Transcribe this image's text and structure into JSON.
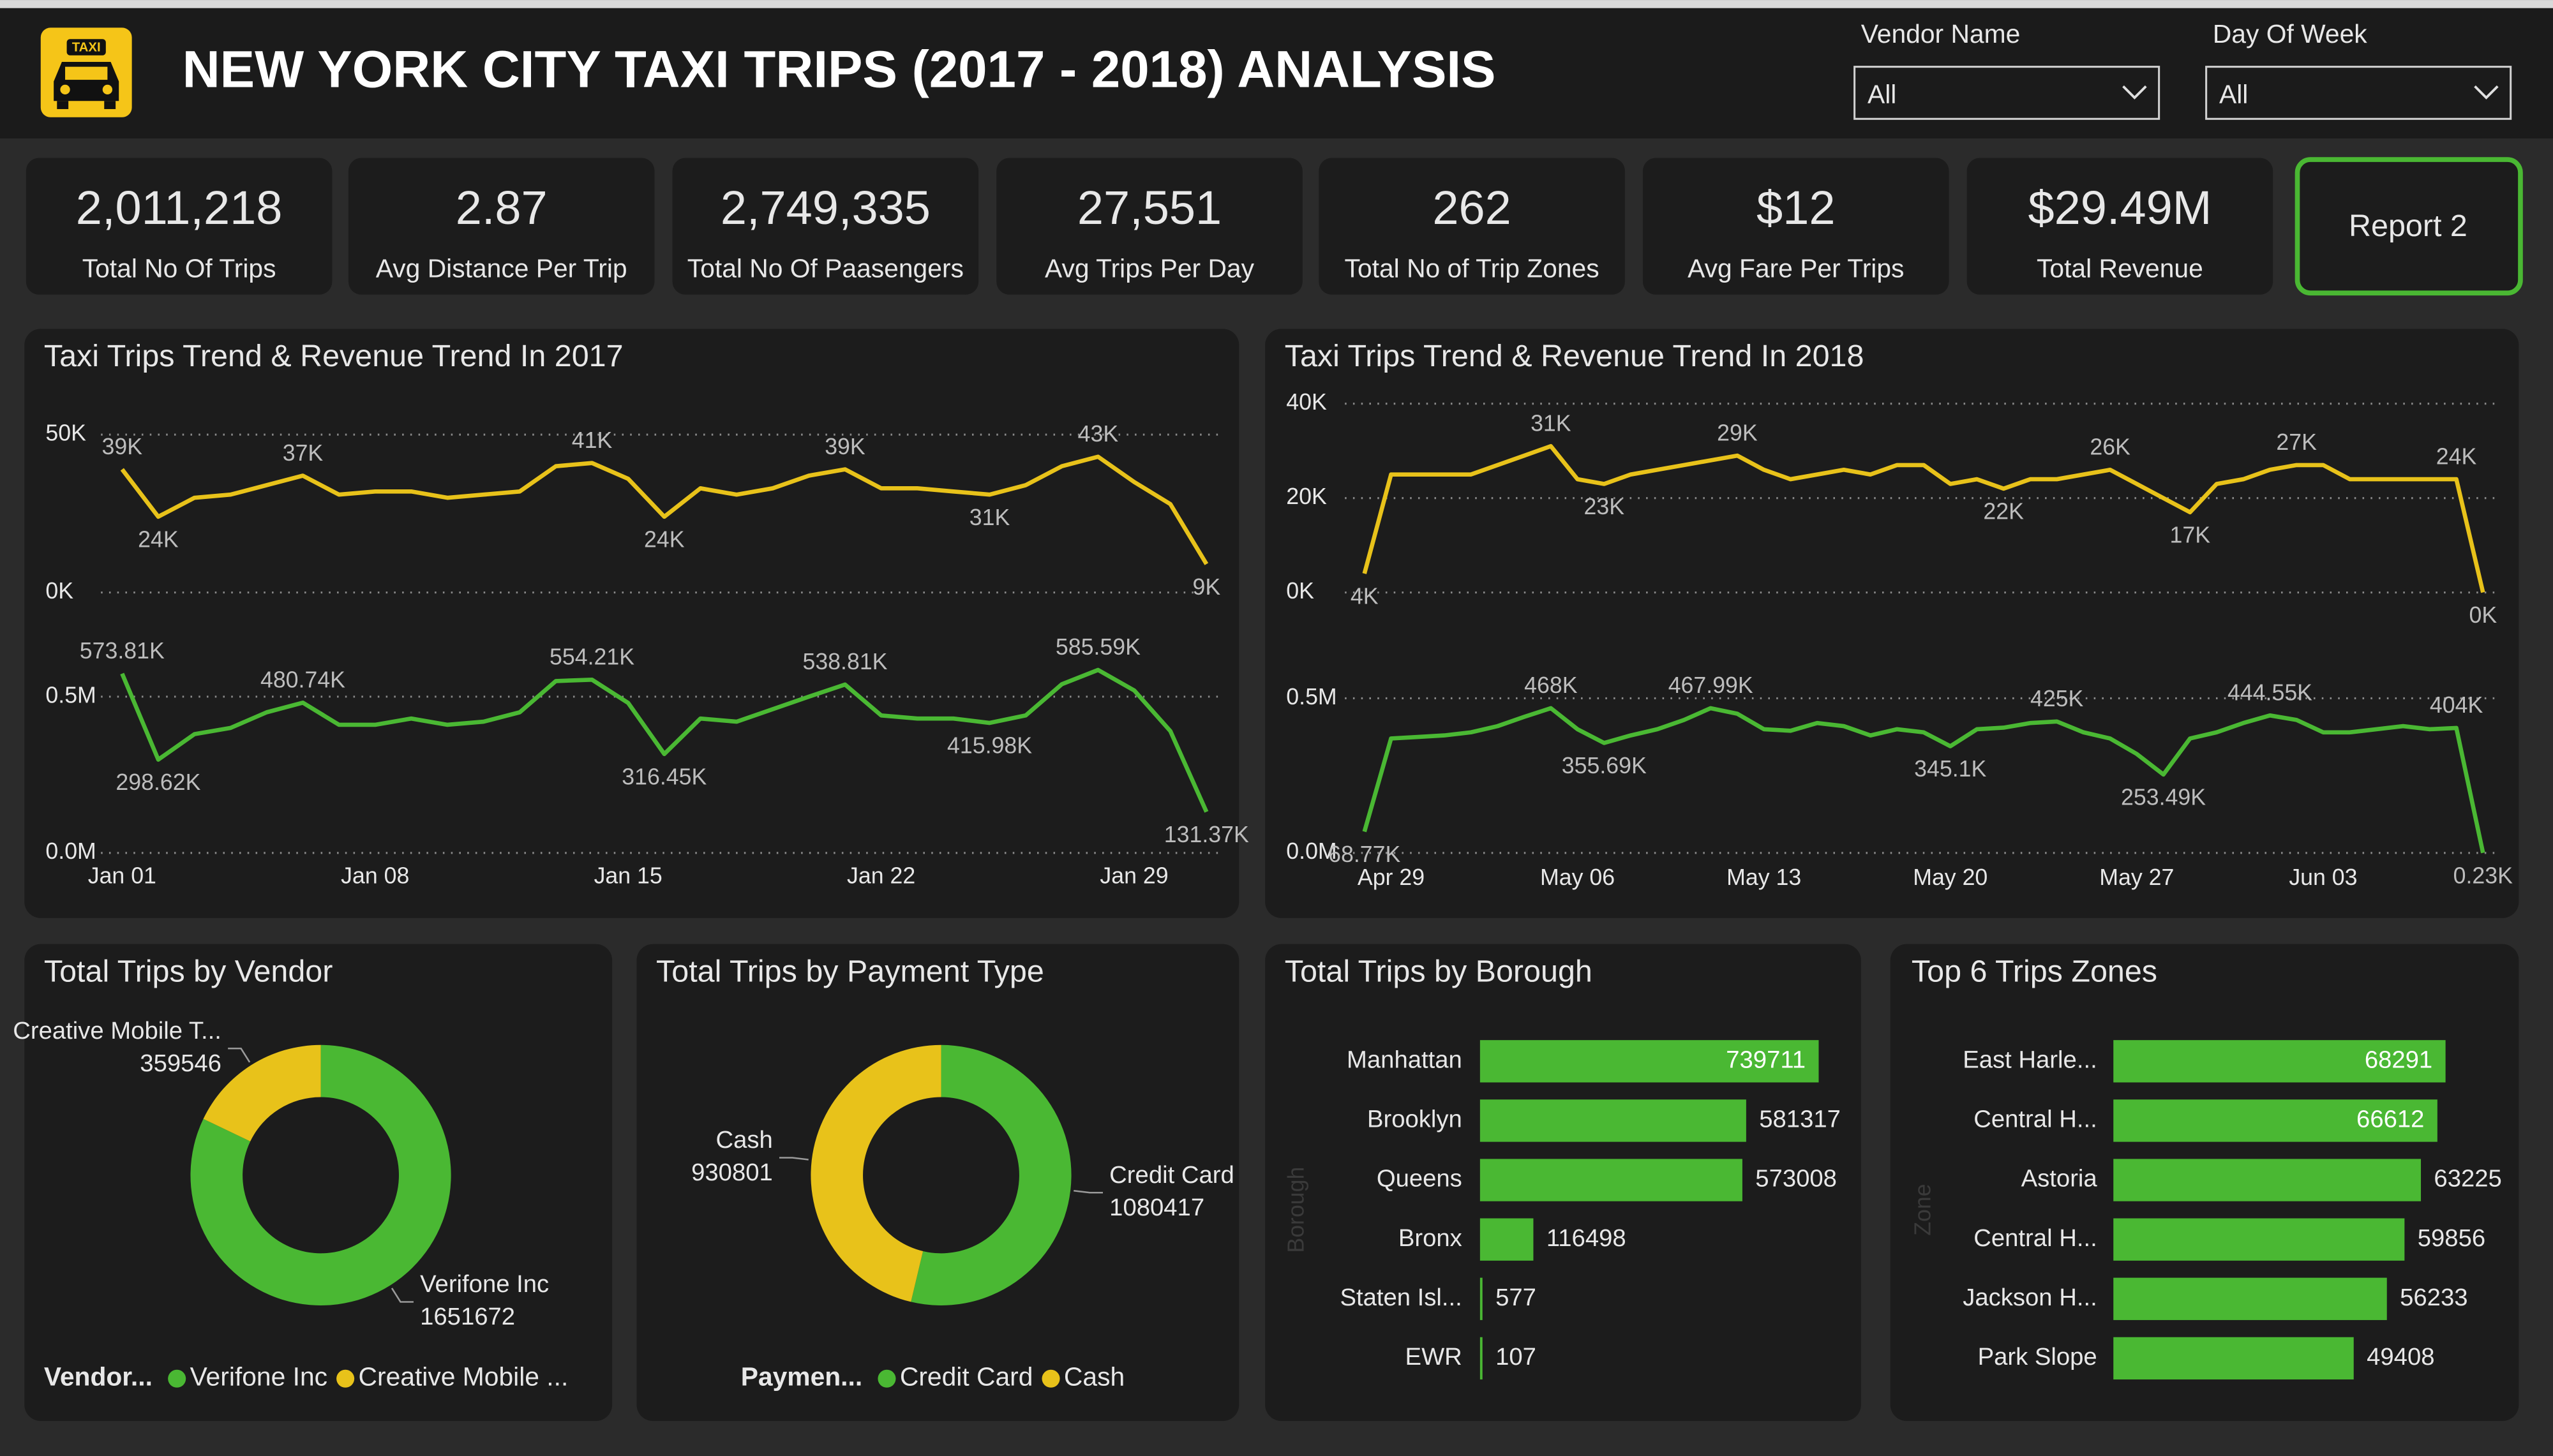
{
  "header": {
    "icon_text": "TAXI",
    "title": "NEW YORK CITY TAXI TRIPS (2017 - 2018) ANALYSIS"
  },
  "filters": [
    {
      "label": "Vendor Name",
      "value": "All"
    },
    {
      "label": "Day Of Week",
      "value": "All"
    }
  ],
  "kpis": [
    {
      "value": "2,011,218",
      "label": "Total No Of Trips"
    },
    {
      "value": "2.87",
      "label": "Avg Distance Per Trip"
    },
    {
      "value": "2,749,335",
      "label": "Total No Of Paasengers"
    },
    {
      "value": "27,551",
      "label": "Avg Trips Per Day"
    },
    {
      "value": "262",
      "label": "Total No of Trip Zones"
    },
    {
      "value": "$12",
      "label": "Avg Fare Per Trips"
    },
    {
      "value": "$29.49M",
      "label": "Total Revenue"
    }
  ],
  "button": "Report 2",
  "chart_data": [
    {
      "type": "line",
      "title": "Taxi Trips Trend & Revenue Trend In 2017",
      "categories": [
        "Jan 01",
        null,
        null,
        null,
        null,
        null,
        null,
        "Jan 08",
        null,
        null,
        null,
        null,
        null,
        null,
        "Jan 15",
        null,
        null,
        null,
        null,
        null,
        null,
        "Jan 22",
        null,
        null,
        null,
        null,
        null,
        null,
        "Jan 29",
        null,
        null
      ],
      "series": [
        {
          "color": "#e8c21a",
          "values": [
            39000,
            24000,
            30000,
            31000,
            34000,
            37000,
            31000,
            32000,
            32000,
            30000,
            31000,
            32000,
            40000,
            41000,
            36000,
            24000,
            33000,
            31000,
            33000,
            37000,
            39000,
            33000,
            33000,
            32000,
            31000,
            34000,
            40000,
            43000,
            35000,
            28000,
            9000
          ],
          "value_labels": [
            "39K",
            "24K",
            null,
            null,
            null,
            "37K",
            null,
            null,
            null,
            null,
            null,
            null,
            null,
            "41K",
            null,
            "24K",
            null,
            null,
            null,
            null,
            "39K",
            null,
            null,
            null,
            "31K",
            null,
            null,
            "43K",
            null,
            null,
            "9K"
          ]
        },
        {
          "color": "#4ab833",
          "axis": "y2",
          "values": [
            573810,
            298620,
            380000,
            400000,
            450000,
            480740,
            410000,
            410000,
            430000,
            410000,
            420000,
            450000,
            550000,
            554210,
            480000,
            316450,
            430000,
            420000,
            460000,
            500000,
            538810,
            440000,
            430000,
            430000,
            415980,
            440000,
            540000,
            585590,
            520000,
            390000,
            131370
          ],
          "value_labels": [
            "573.81K",
            "298.62K",
            null,
            null,
            null,
            "480.74K",
            null,
            null,
            null,
            null,
            null,
            null,
            null,
            "554.21K",
            null,
            "316.45K",
            null,
            null,
            null,
            null,
            "538.81K",
            null,
            null,
            null,
            "415.98K",
            null,
            null,
            "585.59K",
            null,
            null,
            "131.37K"
          ]
        }
      ],
      "ylim": [
        0,
        50000
      ],
      "yticks": [
        {
          "value": 0,
          "label": "0K"
        },
        {
          "value": 50000,
          "label": "50K"
        }
      ],
      "y2lim": [
        0,
        600000
      ],
      "y2ticks": [
        {
          "value": 0,
          "label": "0.0M"
        },
        {
          "value": 500000,
          "label": "0.5M"
        }
      ],
      "grid": true
    },
    {
      "type": "line",
      "title": "Taxi Trips Trend & Revenue Trend In 2018",
      "categories": [
        null,
        "Apr 29",
        null,
        null,
        null,
        null,
        null,
        null,
        "May 06",
        null,
        null,
        null,
        null,
        null,
        null,
        "May 13",
        null,
        null,
        null,
        null,
        null,
        null,
        "May 20",
        null,
        null,
        null,
        null,
        null,
        null,
        "May 27",
        null,
        null,
        null,
        null,
        null,
        null,
        "Jun 03",
        null,
        null,
        null,
        null,
        null,
        null
      ],
      "series": [
        {
          "color": "#e8c21a",
          "values": [
            4000,
            25000,
            25000,
            25000,
            25000,
            27000,
            29000,
            31000,
            24000,
            23000,
            25000,
            26000,
            27000,
            28000,
            29000,
            26000,
            24000,
            25000,
            26000,
            25000,
            27000,
            27000,
            23000,
            24000,
            22000,
            24000,
            24000,
            25000,
            26000,
            23000,
            20000,
            17000,
            23000,
            24000,
            26000,
            27000,
            27000,
            24000,
            24000,
            24000,
            24000,
            24000,
            10
          ],
          "value_labels": [
            "4K",
            null,
            null,
            null,
            null,
            null,
            null,
            "31K",
            null,
            "23K",
            null,
            null,
            null,
            null,
            "29K",
            null,
            null,
            null,
            null,
            null,
            null,
            null,
            null,
            null,
            "22K",
            null,
            null,
            null,
            "26K",
            null,
            null,
            "17K",
            null,
            null,
            null,
            "27K",
            null,
            null,
            null,
            null,
            null,
            "24K",
            "0K"
          ]
        },
        {
          "color": "#4ab833",
          "axis": "y2",
          "values": [
            68770,
            370000,
            375000,
            380000,
            390000,
            410000,
            440000,
            468000,
            400000,
            355690,
            380000,
            400000,
            430000,
            467990,
            450000,
            400000,
            395000,
            420000,
            410000,
            380000,
            400000,
            390000,
            345100,
            400000,
            405000,
            420000,
            425000,
            390000,
            370000,
            320000,
            253490,
            370000,
            390000,
            420000,
            444550,
            430000,
            390000,
            390000,
            400000,
            410000,
            400000,
            404000,
            230
          ],
          "value_labels": [
            "68.77K",
            null,
            null,
            null,
            null,
            null,
            null,
            "468K",
            null,
            "355.69K",
            null,
            null,
            null,
            "467.99K",
            null,
            null,
            null,
            null,
            null,
            null,
            null,
            null,
            "345.1K",
            null,
            null,
            null,
            "425K",
            null,
            null,
            null,
            "253.49K",
            null,
            null,
            null,
            "444.55K",
            null,
            null,
            null,
            null,
            null,
            null,
            "404K",
            "0.23K"
          ]
        }
      ],
      "ylim": [
        0,
        40000
      ],
      "yticks": [
        {
          "value": 0,
          "label": "0K"
        },
        {
          "value": 20000,
          "label": "20K"
        },
        {
          "value": 40000,
          "label": "40K"
        }
      ],
      "y2lim": [
        0,
        500000
      ],
      "y2ticks": [
        {
          "value": 0,
          "label": "0.0M"
        },
        {
          "value": 500000,
          "label": "0.5M"
        }
      ],
      "grid": true
    },
    {
      "type": "pie",
      "donut": true,
      "title": "Total Trips by Vendor",
      "categories": [
        "Verifone Inc",
        "Creative Mobile T..."
      ],
      "values": [
        1651672,
        359546
      ],
      "colors": [
        "#4ab833",
        "#e8c21a"
      ],
      "legend_title": "Vendor...",
      "legend_labels": [
        "Verifone Inc",
        "Creative Mobile ..."
      ]
    },
    {
      "type": "pie",
      "donut": true,
      "title": "Total Trips by Payment Type",
      "categories": [
        "Credit Card",
        "Cash"
      ],
      "values": [
        1080417,
        930801
      ],
      "colors": [
        "#4ab833",
        "#e8c21a"
      ],
      "legend_title": "Paymen...",
      "legend_labels": [
        "Credit Card",
        "Cash"
      ]
    },
    {
      "type": "bar",
      "orientation": "horizontal",
      "title": "Total Trips by Borough",
      "y_label": "Borough",
      "categories": [
        "Manhattan",
        "Brooklyn",
        "Queens",
        "Bronx",
        "Staten Isl...",
        "EWR"
      ],
      "values": [
        739711,
        581317,
        573008,
        116498,
        577,
        107
      ],
      "color": "#4ab833"
    },
    {
      "type": "bar",
      "orientation": "horizontal",
      "title": "Top 6 Trips Zones",
      "y_label": "Zone",
      "categories": [
        "East Harle...",
        "Central H...",
        "Astoria",
        "Central H...",
        "Jackson H...",
        "Park Slope"
      ],
      "values": [
        68291,
        66612,
        63225,
        59856,
        56233,
        49408
      ],
      "color": "#4ab833"
    }
  ]
}
